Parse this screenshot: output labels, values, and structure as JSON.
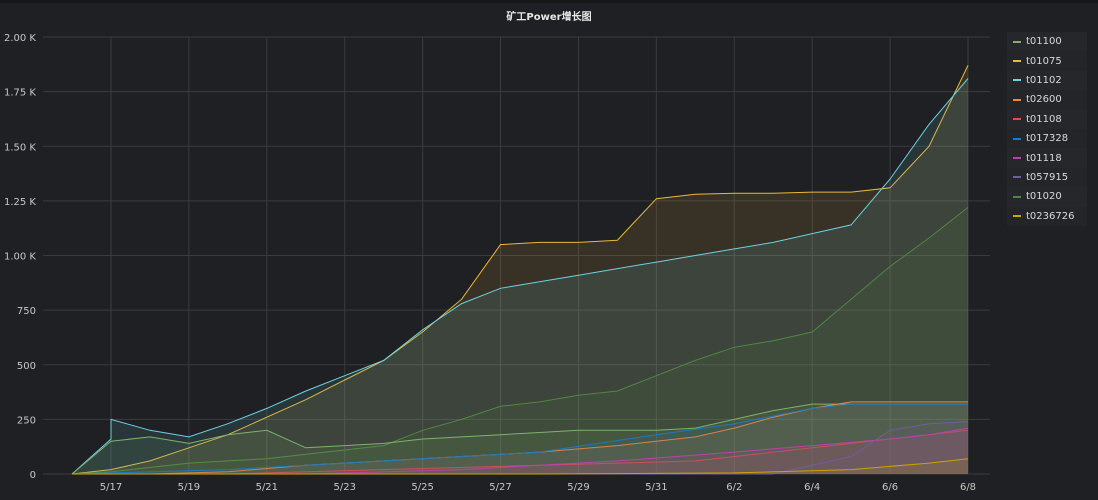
{
  "title": "矿工Power增长图",
  "legend": [
    {
      "name": "t01100",
      "color": "#7eb26d"
    },
    {
      "name": "t01075",
      "color": "#eab839"
    },
    {
      "name": "t01102",
      "color": "#6ed0e0"
    },
    {
      "name": "t02600",
      "color": "#ef843c"
    },
    {
      "name": "t01108",
      "color": "#e24d42"
    },
    {
      "name": "t017328",
      "color": "#1f78c1"
    },
    {
      "name": "t01118",
      "color": "#ba43a9"
    },
    {
      "name": "t057915",
      "color": "#705da0"
    },
    {
      "name": "t01020",
      "color": "#508642"
    },
    {
      "name": "t0236726",
      "color": "#cca300"
    }
  ],
  "chart_data": {
    "type": "area",
    "title": "矿工Power增长图",
    "xlabel": "",
    "ylabel": "",
    "x_ticks": [
      "5/17",
      "5/19",
      "5/21",
      "5/23",
      "5/25",
      "5/27",
      "5/29",
      "5/31",
      "6/2",
      "6/4",
      "6/6",
      "6/8"
    ],
    "y_ticks": [
      "0",
      "250",
      "500",
      "750",
      "1.00 K",
      "1.25 K",
      "1.50 K",
      "1.75 K",
      "2.00 K"
    ],
    "ylim": [
      0,
      2000
    ],
    "x_range": [
      "5/16",
      "6/8"
    ],
    "grid": true,
    "legend_position": "right",
    "series": [
      {
        "name": "t01075",
        "points": [
          [
            "5/16",
            0
          ],
          [
            "5/17",
            20
          ],
          [
            "5/18",
            60
          ],
          [
            "5/19",
            120
          ],
          [
            "5/20",
            180
          ],
          [
            "5/21",
            260
          ],
          [
            "5/22",
            340
          ],
          [
            "5/23",
            430
          ],
          [
            "5/24",
            520
          ],
          [
            "5/25",
            650
          ],
          [
            "5/26",
            800
          ],
          [
            "5/27",
            1050
          ],
          [
            "5/28",
            1060
          ],
          [
            "5/29",
            1060
          ],
          [
            "5/30",
            1070
          ],
          [
            "5/31",
            1260
          ],
          [
            "6/1",
            1280
          ],
          [
            "6/2",
            1285
          ],
          [
            "6/3",
            1285
          ],
          [
            "6/4",
            1290
          ],
          [
            "6/5",
            1290
          ],
          [
            "6/6",
            1310
          ],
          [
            "6/7",
            1500
          ],
          [
            "6/8",
            1870
          ]
        ]
      },
      {
        "name": "t01102",
        "points": [
          [
            "5/16",
            0
          ],
          [
            "5/17",
            160
          ],
          [
            "5/17",
            250
          ],
          [
            "5/18",
            200
          ],
          [
            "5/19",
            170
          ],
          [
            "5/20",
            230
          ],
          [
            "5/21",
            300
          ],
          [
            "5/22",
            380
          ],
          [
            "5/23",
            450
          ],
          [
            "5/24",
            520
          ],
          [
            "5/25",
            660
          ],
          [
            "5/26",
            780
          ],
          [
            "5/27",
            850
          ],
          [
            "5/28",
            880
          ],
          [
            "5/29",
            910
          ],
          [
            "5/30",
            940
          ],
          [
            "5/31",
            970
          ],
          [
            "6/1",
            1000
          ],
          [
            "6/2",
            1030
          ],
          [
            "6/3",
            1060
          ],
          [
            "6/4",
            1100
          ],
          [
            "6/5",
            1140
          ],
          [
            "6/6",
            1350
          ],
          [
            "6/7",
            1600
          ],
          [
            "6/8",
            1810
          ]
        ]
      },
      {
        "name": "t01020",
        "points": [
          [
            "5/16",
            0
          ],
          [
            "5/17",
            10
          ],
          [
            "5/18",
            30
          ],
          [
            "5/19",
            50
          ],
          [
            "5/20",
            60
          ],
          [
            "5/21",
            70
          ],
          [
            "5/22",
            90
          ],
          [
            "5/23",
            110
          ],
          [
            "5/24",
            130
          ],
          [
            "5/25",
            200
          ],
          [
            "5/26",
            250
          ],
          [
            "5/27",
            310
          ],
          [
            "5/28",
            330
          ],
          [
            "5/29",
            360
          ],
          [
            "5/30",
            380
          ],
          [
            "5/31",
            450
          ],
          [
            "6/1",
            520
          ],
          [
            "6/2",
            580
          ],
          [
            "6/3",
            610
          ],
          [
            "6/4",
            650
          ],
          [
            "6/5",
            800
          ],
          [
            "6/6",
            950
          ],
          [
            "6/7",
            1080
          ],
          [
            "6/8",
            1220
          ]
        ]
      },
      {
        "name": "t01100",
        "points": [
          [
            "5/16",
            0
          ],
          [
            "5/17",
            150
          ],
          [
            "5/18",
            170
          ],
          [
            "5/19",
            140
          ],
          [
            "5/20",
            180
          ],
          [
            "5/21",
            200
          ],
          [
            "5/22",
            120
          ],
          [
            "5/23",
            130
          ],
          [
            "5/24",
            140
          ],
          [
            "5/25",
            160
          ],
          [
            "5/26",
            170
          ],
          [
            "5/27",
            180
          ],
          [
            "5/28",
            190
          ],
          [
            "5/29",
            200
          ],
          [
            "5/30",
            200
          ],
          [
            "5/31",
            200
          ],
          [
            "6/1",
            210
          ],
          [
            "6/2",
            250
          ],
          [
            "6/3",
            290
          ],
          [
            "6/4",
            320
          ],
          [
            "6/5",
            320
          ],
          [
            "6/6",
            320
          ],
          [
            "6/7",
            320
          ],
          [
            "6/8",
            320
          ]
        ]
      },
      {
        "name": "t02600",
        "points": [
          [
            "5/16",
            0
          ],
          [
            "5/18",
            0
          ],
          [
            "5/20",
            10
          ],
          [
            "5/22",
            40
          ],
          [
            "5/24",
            60
          ],
          [
            "5/26",
            80
          ],
          [
            "5/28",
            100
          ],
          [
            "5/30",
            130
          ],
          [
            "6/1",
            170
          ],
          [
            "6/2",
            210
          ],
          [
            "6/3",
            260
          ],
          [
            "6/4",
            300
          ],
          [
            "6/5",
            330
          ],
          [
            "6/6",
            330
          ],
          [
            "6/7",
            330
          ],
          [
            "6/8",
            330
          ]
        ]
      },
      {
        "name": "t01108",
        "points": [
          [
            "5/16",
            0
          ],
          [
            "5/20",
            0
          ],
          [
            "5/24",
            20
          ],
          [
            "5/28",
            40
          ],
          [
            "6/1",
            60
          ],
          [
            "6/4",
            120
          ],
          [
            "6/6",
            160
          ],
          [
            "6/7",
            180
          ],
          [
            "6/8",
            200
          ]
        ]
      },
      {
        "name": "t017328",
        "points": [
          [
            "5/16",
            0
          ],
          [
            "5/20",
            20
          ],
          [
            "5/24",
            60
          ],
          [
            "5/28",
            100
          ],
          [
            "5/31",
            180
          ],
          [
            "6/2",
            230
          ],
          [
            "6/4",
            300
          ],
          [
            "6/5",
            320
          ],
          [
            "6/6",
            320
          ],
          [
            "6/7",
            320
          ],
          [
            "6/8",
            320
          ]
        ]
      },
      {
        "name": "t01118",
        "points": [
          [
            "5/16",
            0
          ],
          [
            "5/22",
            0
          ],
          [
            "5/26",
            20
          ],
          [
            "5/30",
            60
          ],
          [
            "6/2",
            100
          ],
          [
            "6/4",
            130
          ],
          [
            "6/6",
            160
          ],
          [
            "6/7",
            180
          ],
          [
            "6/8",
            210
          ]
        ]
      },
      {
        "name": "t057915",
        "points": [
          [
            "5/16",
            0
          ],
          [
            "6/3",
            0
          ],
          [
            "6/4",
            40
          ],
          [
            "6/5",
            80
          ],
          [
            "6/6",
            200
          ],
          [
            "6/7",
            230
          ],
          [
            "6/8",
            240
          ]
        ]
      },
      {
        "name": "t0236726",
        "points": [
          [
            "5/16",
            0
          ],
          [
            "5/28",
            0
          ],
          [
            "6/2",
            5
          ],
          [
            "6/5",
            20
          ],
          [
            "6/7",
            50
          ],
          [
            "6/8",
            70
          ]
        ]
      }
    ]
  }
}
